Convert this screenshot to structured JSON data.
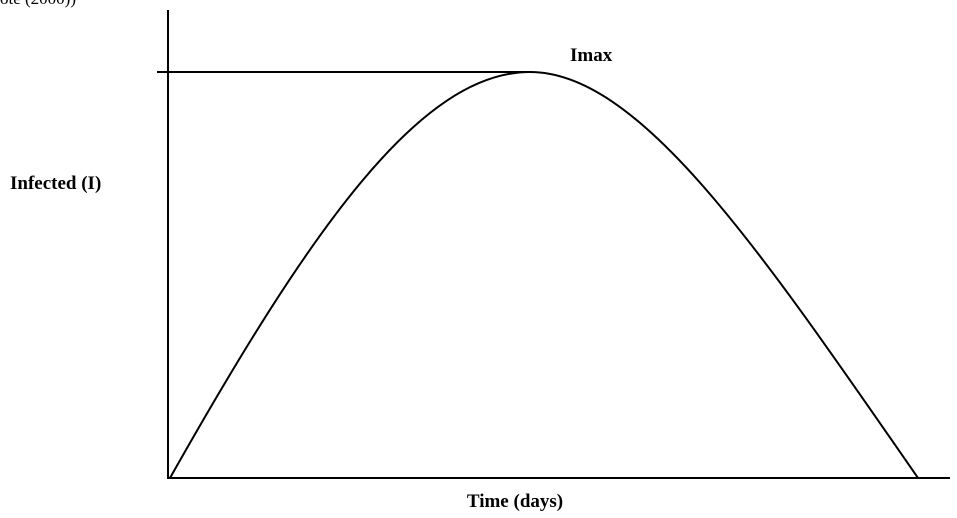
{
  "caption_fragment": "ote (2000))",
  "peak_label": "Imax",
  "y_axis_label": "Infected (I)",
  "x_axis_label": "Time (days)"
}
